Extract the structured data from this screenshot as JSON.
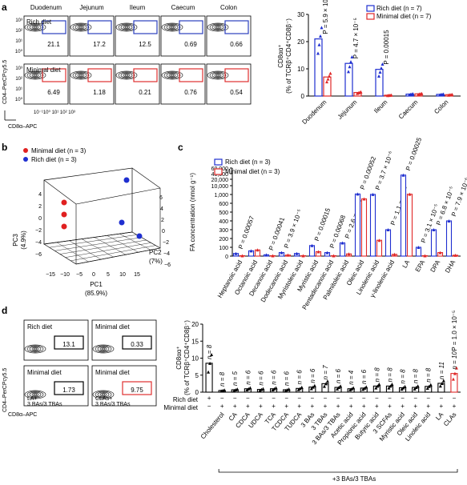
{
  "panel_labels": [
    "a",
    "b",
    "c",
    "d"
  ],
  "panel_a": {
    "flow": {
      "columns": [
        "Duodenum",
        "Jejunum",
        "Ileum",
        "Caecum",
        "Colon"
      ],
      "rows": [
        {
          "label": "Rich diet",
          "values": [
            "21.1",
            "17.2",
            "12.5",
            "0.69",
            "0.66"
          ],
          "color": "#2b3fbf"
        },
        {
          "label": "Minimal diet",
          "values": [
            "6.49",
            "1.18",
            "0.21",
            "0.76",
            "0.54"
          ],
          "color": "#e03030"
        }
      ],
      "ylabel": "CD4–PerCPcy5.5",
      "xlabel": "CD8α–APC",
      "ticks": [
        "10⁰",
        "10¹",
        "10²",
        "10³"
      ],
      "xticks": "10⁻¹10⁰ 10¹ 10² 10³"
    },
    "bar": {
      "type": "bar",
      "ylabel_line1": "CD8αα⁺",
      "ylabel_line2": "(% of TCRβ⁺CD4⁺CD8β⁻)",
      "ylim": [
        0,
        30
      ],
      "yticks": [
        "0",
        "10",
        "20",
        "30"
      ],
      "categories": [
        "Duodenum",
        "Jejunum",
        "Ileum",
        "Caecum",
        "Colon"
      ],
      "series": [
        {
          "name": "Rich diet (n = 7)",
          "values": [
            21,
            12,
            9.8,
            0.7,
            0.6
          ],
          "color": "#1f2fd0"
        },
        {
          "name": "Minimal diet (n = 7)",
          "values": [
            7,
            1.3,
            0.3,
            0.8,
            0.5
          ],
          "color": "#e02828"
        }
      ],
      "pvalues": [
        "P = 5.9 × 10⁻⁷",
        "P = 4.7 × 10⁻⁵",
        "P = 0.00015",
        "",
        ""
      ]
    }
  },
  "panel_b": {
    "type": "scatter",
    "legend": [
      {
        "name": "Minimal diet (n = 3)",
        "color": "#e02020"
      },
      {
        "name": "Rich diet (n = 3)",
        "color": "#1f2fd0"
      }
    ],
    "xlabel": "PC1",
    "xlabel_pct": "(85.9%)",
    "ylabel": "PC2",
    "ylabel_pct": "(7%)",
    "zlabel": "PC3",
    "zlabel_pct": "(4.9%)",
    "xticks": [
      "−15",
      "−10",
      "−5",
      "0",
      "5",
      "10",
      "15"
    ],
    "yticks": [
      "−6",
      "−4",
      "−2",
      "0",
      "2",
      "4",
      "6"
    ],
    "zticks": [
      "−6",
      "−4",
      "−2",
      "0",
      "2",
      "4"
    ]
  },
  "panel_c": {
    "type": "bar",
    "ylabel": "FA concentration (nmol g⁻¹)",
    "yticks": [
      "0",
      "100",
      "200",
      "300",
      "400",
      "500",
      "600",
      "1,000",
      "10,000",
      "20,000",
      "40,000",
      "60,000"
    ],
    "legend": [
      {
        "name": "Rich diet (n = 3)",
        "color": "#1f2fd0"
      },
      {
        "name": "Minimal diet (n = 3)",
        "color": "#e02828"
      }
    ],
    "categories": [
      "Heptanoic acid",
      "Octanoic acid",
      "Decanoic acid",
      "Dodecanoic acid",
      "Myristoleic acid",
      "Myristic acid",
      "Pentadecanoic acid",
      "Palmitoleic acid",
      "Oleic acid",
      "Linolenic acid",
      "γ-linolenic acid",
      "LA",
      "EPA",
      "DPA",
      "DHA"
    ],
    "rich": [
      30,
      60,
      15,
      40,
      30,
      120,
      40,
      150,
      1500,
      1100,
      300,
      35000,
      100,
      300,
      400
    ],
    "minimal": [
      5,
      70,
      5,
      12,
      5,
      50,
      5,
      25,
      800,
      180,
      20,
      1300,
      5,
      40,
      10
    ],
    "pvalues": [
      "P = 0.00057",
      "",
      "P = 0.00041",
      "P = 3.9 × 10⁻⁵",
      "",
      "P = 0.00015",
      "P = 0.00068",
      "P = 2.6 × 10⁻⁶",
      "P = 0.00052",
      "P = 3.7 × 10⁻⁶",
      "P = 1.1 × 10⁻⁵",
      "P = 0.00025",
      "P = 3.1 × 10⁻⁵",
      "P = 6.8 × 10⁻⁵",
      "P = 7.9 × 10⁻⁶"
    ]
  },
  "panel_d": {
    "flow": {
      "panels": [
        {
          "title": "Rich diet",
          "value": "13.1",
          "color": "#000000"
        },
        {
          "title": "Minimal diet",
          "value": "0.33",
          "color": "#000000"
        },
        {
          "title": "Minimal diet",
          "sub1": "LA+",
          "sub2": "3 BAs/3 TBAs",
          "value": "1.73",
          "color": "#000000"
        },
        {
          "title": "Minimal diet",
          "sub1": "CLAs+",
          "sub2": "3 BAs/3 TBAs",
          "value": "9.75",
          "color": "#e03030"
        }
      ],
      "ylabel": "CD4–PerCPcy5.5",
      "xlabel": "CD8α–APC"
    },
    "bar": {
      "type": "bar",
      "ylabel_line1": "CD8αα⁺",
      "ylabel_line2": "(% of TCRβ⁺CD4⁺CD8β⁻)",
      "ylim": [
        0,
        20
      ],
      "yticks": [
        "0",
        "5",
        "10",
        "15",
        "20"
      ],
      "categories": [
        "",
        "Cholesterol",
        "CA",
        "CDCA",
        "UDCA",
        "TCA",
        "TCDCA",
        "TUDCA",
        "3 BAs",
        "3 TBAs",
        "3 BAs/3 TBAs",
        "Acetic acid",
        "Propionic acid",
        "Butyric acid",
        "3 SCFAs",
        "Myristic acid",
        "Oleic acid",
        "Linoleic acid",
        "LA",
        "CLAs"
      ],
      "values": [
        8.5,
        0.5,
        0.7,
        1,
        0.8,
        1,
        0.7,
        1.1,
        1.5,
        2.5,
        1.4,
        1,
        1.2,
        1.8,
        1.8,
        1.3,
        1.4,
        1.7,
        2.6,
        5.5
      ],
      "n": [
        "n = 8",
        "n = 8",
        "n = 5",
        "n = 6",
        "n = 6",
        "n = 6",
        "n = 6",
        "n = 6",
        "n = 6",
        "n = 7",
        "n = 6",
        "n = 4",
        "n = 6",
        "n = 8",
        "n = 8",
        "n = 8",
        "n = 8",
        "n = 8",
        "n = 11",
        "n = 10"
      ],
      "pvalue": "P = 1.0 × 10⁻⁵",
      "row_labels": [
        "Rich diet",
        "Minimal diet"
      ],
      "rich_signs": [
        "+",
        "−",
        "−",
        "−",
        "−",
        "−",
        "−",
        "−",
        "−",
        "−",
        "−",
        "−",
        "−",
        "−",
        "−",
        "−",
        "−",
        "−",
        "−",
        "−"
      ],
      "minimal_signs": [
        "−",
        "+",
        "+",
        "+",
        "+",
        "+",
        "+",
        "+",
        "+",
        "+",
        "+",
        "+",
        "+",
        "+",
        "+",
        "+",
        "+",
        "+",
        "+",
        "+"
      ],
      "bracket_label": "+3 BAs/3 TBAs"
    }
  }
}
